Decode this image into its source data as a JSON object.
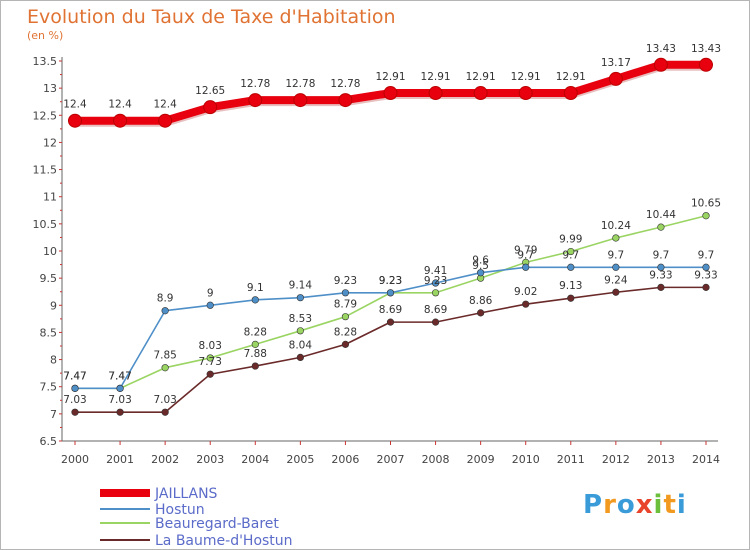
{
  "title": "Evolution du Taux de Taxe d'Habitation",
  "subtitle": "(en %)",
  "logo": {
    "letters": [
      "P",
      "r",
      "o",
      "x",
      "i",
      "t",
      "i"
    ],
    "colors": [
      "#3a9bd9",
      "#f29a1f",
      "#3a9bd9",
      "#e8432b",
      "#6cbf3a",
      "#f29a1f",
      "#3a9bd9"
    ]
  },
  "chart_data": {
    "type": "line",
    "title": "Evolution du Taux de Taxe d'Habitation",
    "ylabel": "(en %)",
    "xlabel": "",
    "x": [
      "2000",
      "2001",
      "2002",
      "2003",
      "2004",
      "2005",
      "2006",
      "2007",
      "2008",
      "2009",
      "2010",
      "2011",
      "2012",
      "2013",
      "2014"
    ],
    "ylim": [
      6.5,
      13.5
    ],
    "yticks": [
      "6.5",
      "7",
      "7.5",
      "8",
      "8.5",
      "9",
      "9.5",
      "10",
      "10.5",
      "11",
      "11.5",
      "12",
      "12.5",
      "13",
      "13.5"
    ],
    "grid": false,
    "legend": "bottom-left",
    "series": [
      {
        "name": "JAILLANS",
        "color": "#e8000f",
        "values": [
          12.4,
          12.4,
          12.4,
          12.65,
          12.78,
          12.78,
          12.78,
          12.91,
          12.91,
          12.91,
          12.91,
          12.91,
          13.17,
          13.43,
          13.43
        ],
        "labels": [
          "12.4",
          "12.4",
          "12.4",
          "12.65",
          "12.78",
          "12.78",
          "12.78",
          "12.91",
          "12.91",
          "12.91",
          "12.91",
          "12.91",
          "13.17",
          "13.43",
          "13.43"
        ]
      },
      {
        "name": "Hostun",
        "color": "#4f8fc8",
        "values": [
          7.47,
          7.47,
          8.9,
          9.0,
          9.1,
          9.14,
          9.23,
          9.23,
          9.41,
          9.6,
          9.7,
          9.7,
          9.7,
          9.7,
          9.7
        ],
        "labels": [
          "7.47",
          "7.47",
          "8.9",
          "9",
          "9.1",
          "9.14",
          "9.23",
          "9.23",
          "9.41",
          "9.6",
          "9.7",
          "9.7",
          "9.7",
          "9.7",
          "9.7"
        ]
      },
      {
        "name": "Beauregard-Baret",
        "color": "#9ad462",
        "values": [
          7.47,
          7.47,
          7.85,
          8.03,
          8.28,
          8.53,
          8.79,
          9.23,
          9.23,
          9.5,
          9.79,
          9.99,
          10.24,
          10.44,
          10.65
        ],
        "labels": [
          "7.47",
          "7.47",
          "7.85",
          "8.03",
          "8.28",
          "8.53",
          "8.79",
          "9.23",
          "9.23",
          "9.5",
          "9.79",
          "9.99",
          "10.24",
          "10.44",
          "10.65"
        ]
      },
      {
        "name": "La Baume-d'Hostun",
        "color": "#6b2a2a",
        "values": [
          7.03,
          7.03,
          7.03,
          7.73,
          7.88,
          8.04,
          8.28,
          8.69,
          8.69,
          8.86,
          9.02,
          9.13,
          9.24,
          9.33,
          9.33
        ],
        "labels": [
          "7.03",
          "7.03",
          "7.03",
          "7.73",
          "7.88",
          "8.04",
          "8.28",
          "8.69",
          "8.69",
          "8.86",
          "9.02",
          "9.13",
          "9.24",
          "9.33",
          "9.33"
        ]
      }
    ]
  }
}
